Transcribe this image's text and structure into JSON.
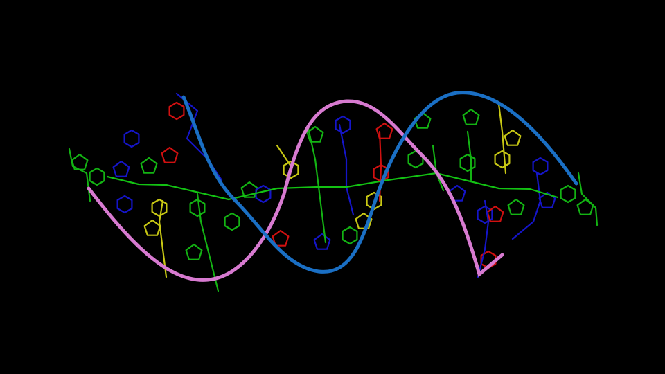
{
  "scene": {
    "subject": "dna-double-helix",
    "background_color": "#000000",
    "colors": {
      "strand_a_ribbon": "#1a6fc4",
      "strand_b_ribbon": "#d77ad0",
      "backbone": "#13c213",
      "base_blue": "#1515c8",
      "base_red": "#d01010",
      "base_yellow": "#c8c814",
      "base_green": "#13b313"
    }
  }
}
